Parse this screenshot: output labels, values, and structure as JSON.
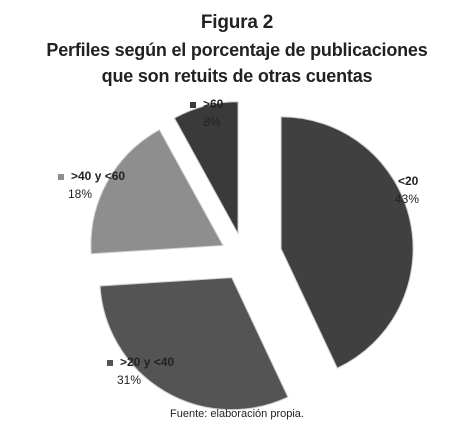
{
  "figure": {
    "title": "Figura 2",
    "subtitle_line1": "Perfiles según el porcentaje de publicaciones",
    "subtitle_line2": "que son retuits de otras cuentas",
    "source": "Fuente: elaboración propia."
  },
  "chart_data": {
    "type": "pie",
    "exploded": true,
    "slices": [
      {
        "label": "<20",
        "value": 43,
        "value_label": "43%",
        "color": "#404040"
      },
      {
        "label": ">20 y <40",
        "value": 31,
        "value_label": "31%",
        "color": "#545454"
      },
      {
        "label": ">40 y <60",
        "value": 18,
        "value_label": "18%",
        "color": "#8e8e8e"
      },
      {
        "label": ">60",
        "value": 8,
        "value_label": "8%",
        "color": "#3a3a3a"
      }
    ]
  }
}
